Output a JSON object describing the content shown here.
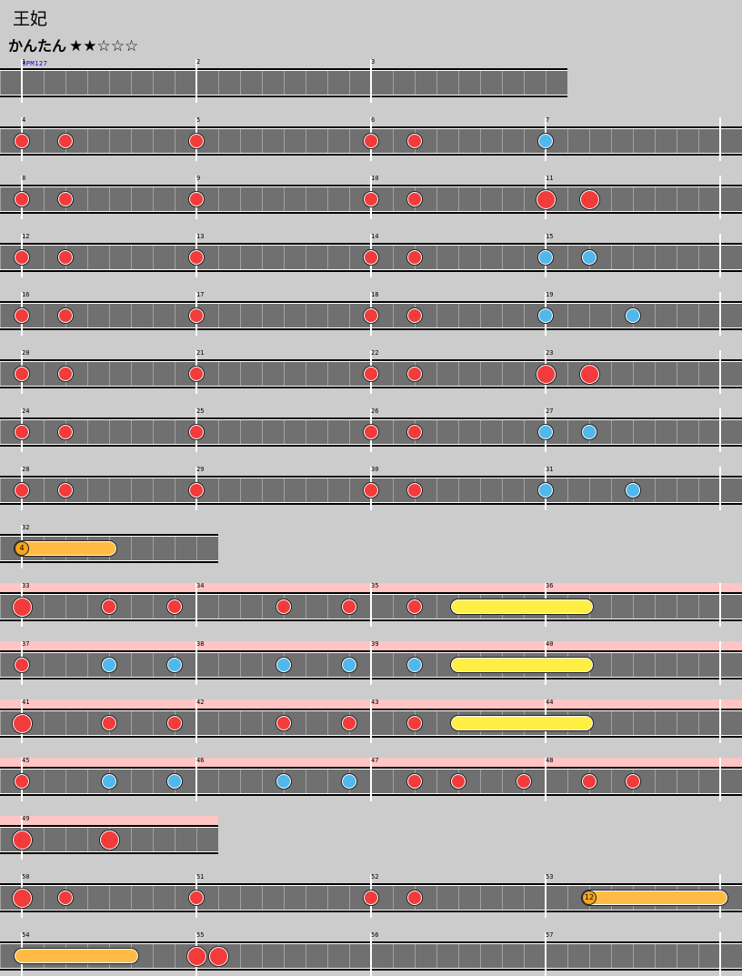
{
  "header": {
    "title": "王妃",
    "difficulty": "かんたん",
    "stars": "★★☆☆☆",
    "bpm": "BPM127"
  },
  "colors": {
    "background": "#cccccc",
    "lane": "#707070",
    "gogo": "#ffc4c4",
    "don": "#f33b3b",
    "ka": "#4fb8ec",
    "drumroll": "#ffee44",
    "balloon": "#ffbb44"
  },
  "measures": [
    "1",
    "2",
    "3",
    "4",
    "5",
    "6",
    "7",
    "8",
    "9",
    "10",
    "11",
    "12",
    "13",
    "14",
    "15",
    "16",
    "17",
    "18",
    "19",
    "20",
    "21",
    "22",
    "23",
    "24",
    "25",
    "26",
    "27",
    "28",
    "29",
    "30",
    "31",
    "32",
    "33",
    "34",
    "35",
    "36",
    "37",
    "38",
    "39",
    "40",
    "41",
    "42",
    "43",
    "44",
    "45",
    "46",
    "47",
    "48",
    "49",
    "50",
    "51",
    "52",
    "53",
    "54",
    "55",
    "56",
    "57"
  ],
  "balloons": [
    "4",
    "12"
  ]
}
